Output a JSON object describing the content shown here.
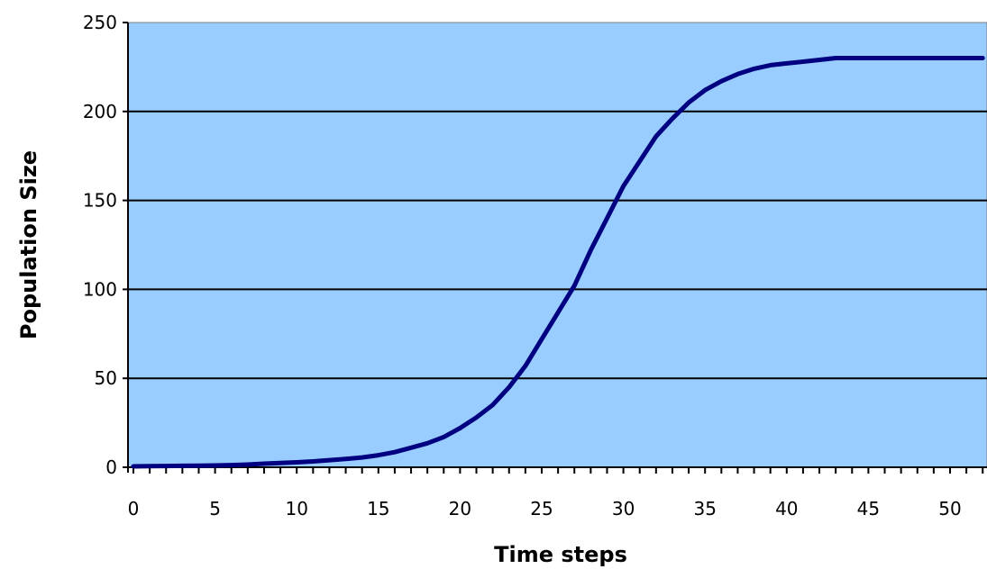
{
  "chart_data": {
    "type": "line",
    "title": "",
    "xlabel": "Time steps",
    "ylabel": "Population Size",
    "xlim": [
      0,
      52
    ],
    "ylim": [
      0,
      250
    ],
    "x_ticks": [
      0,
      5,
      10,
      15,
      20,
      25,
      30,
      35,
      40,
      45,
      50
    ],
    "y_ticks": [
      0,
      50,
      100,
      150,
      200,
      250
    ],
    "grid": "horizontal",
    "legend": "none",
    "plot_background": "#99ccff",
    "line_color": "#000080",
    "series": [
      {
        "x": [
          0,
          1,
          2,
          3,
          4,
          5,
          6,
          7,
          8,
          9,
          10,
          11,
          12,
          13,
          14,
          15,
          16,
          17,
          18,
          19,
          20,
          21,
          22,
          23,
          24,
          25,
          26,
          27,
          28,
          29,
          30,
          31,
          32,
          33,
          34,
          35,
          36,
          37,
          38,
          39,
          40,
          41,
          42,
          43,
          44,
          45,
          46,
          47,
          48,
          49,
          50,
          51,
          52
        ],
        "values": [
          0.5,
          0.6,
          0.7,
          0.8,
          0.9,
          1,
          1.2,
          1.5,
          2,
          2.4,
          2.8,
          3.3,
          4,
          4.7,
          5.5,
          6.8,
          8.5,
          11,
          13.5,
          17,
          22,
          28,
          35,
          45,
          57,
          72,
          87,
          102,
          122,
          140,
          158,
          172,
          186,
          196,
          205,
          212,
          217,
          221,
          224,
          226,
          227,
          228,
          229,
          230,
          230,
          230,
          230,
          230,
          230,
          230,
          230,
          230,
          230
        ]
      }
    ]
  }
}
